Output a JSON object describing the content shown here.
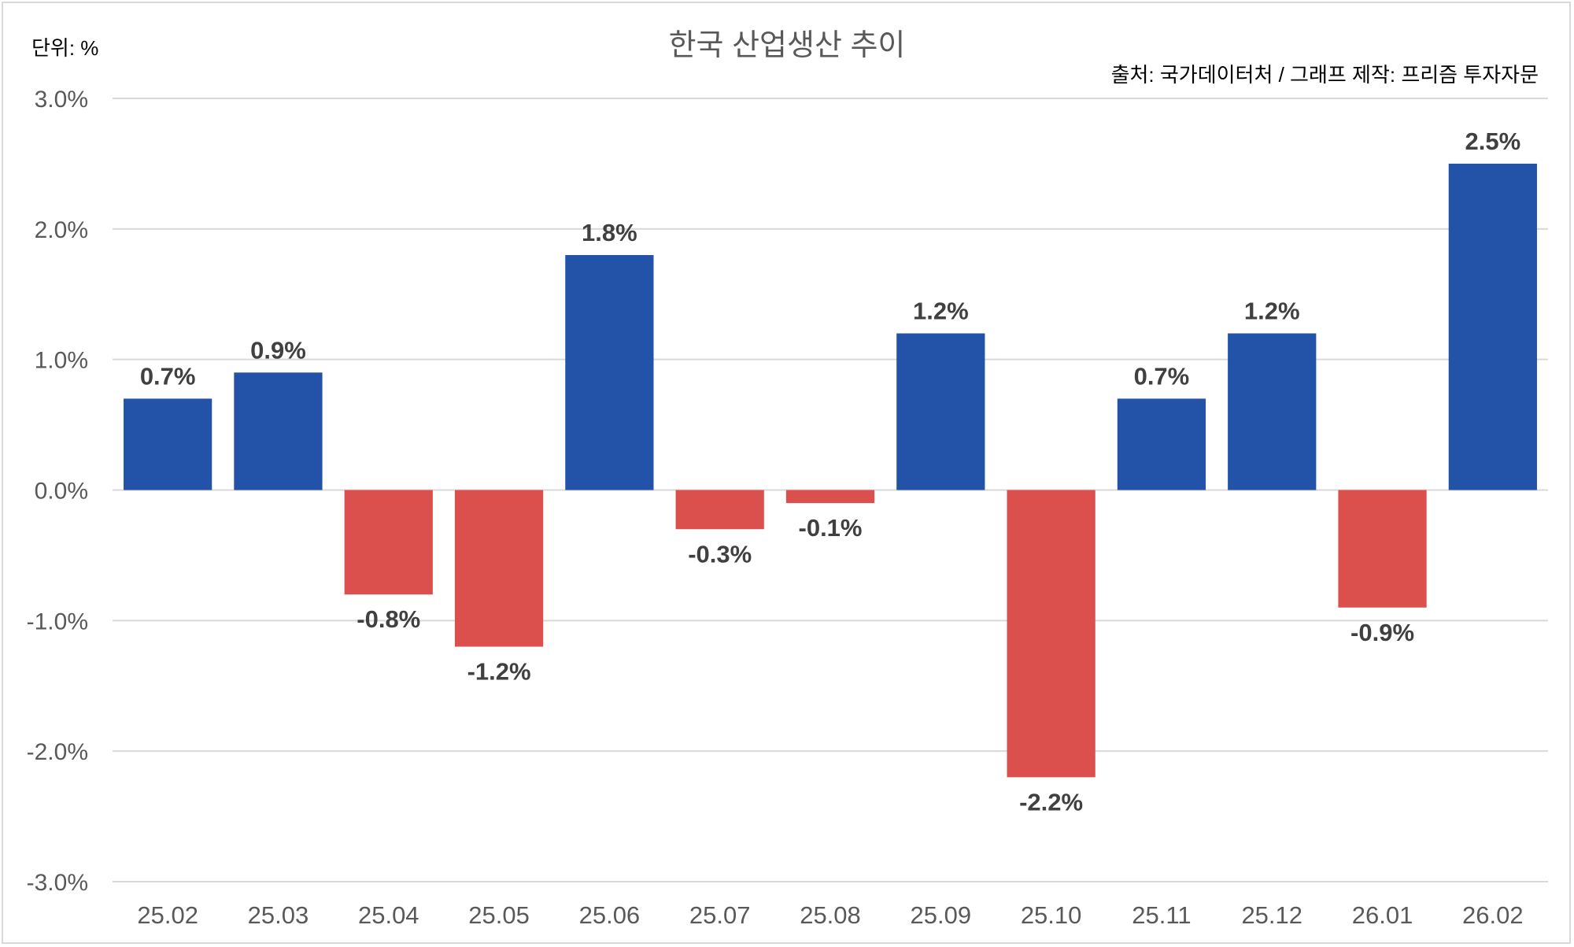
{
  "chart_data": {
    "type": "bar",
    "title": "한국 산업생산 추이",
    "unit_label": "단위: %",
    "source_note": "출처: 국가데이터처 / 그래프 제작: 프리즘 투자자문",
    "xlabel": "",
    "ylabel": "",
    "ylim": [
      -3,
      3
    ],
    "yticks": [
      3,
      2,
      1,
      0,
      -1,
      -2,
      -3
    ],
    "ytick_labels": [
      "3.0%",
      "2.0%",
      "1.0%",
      "0.0%",
      "-1.0%",
      "-2.0%",
      "-3.0%"
    ],
    "grid": true,
    "categories": [
      "25.02",
      "25.03",
      "25.04",
      "25.05",
      "25.06",
      "25.07",
      "25.08",
      "25.09",
      "25.10",
      "25.11",
      "25.12",
      "26.01",
      "26.02"
    ],
    "values": [
      0.7,
      0.9,
      -0.8,
      -1.2,
      1.8,
      -0.3,
      -0.1,
      1.2,
      -2.2,
      0.7,
      1.2,
      -0.9,
      2.5
    ],
    "data_labels": [
      "0.7%",
      "0.9%",
      "-0.8%",
      "-1.2%",
      "1.8%",
      "-0.3%",
      "-0.1%",
      "1.2%",
      "-2.2%",
      "0.7%",
      "1.2%",
      "-0.9%",
      "2.5%"
    ],
    "colors": {
      "positive": "#2353A8",
      "negative": "#DB4F4D",
      "grid": "#d9d9d9"
    }
  }
}
